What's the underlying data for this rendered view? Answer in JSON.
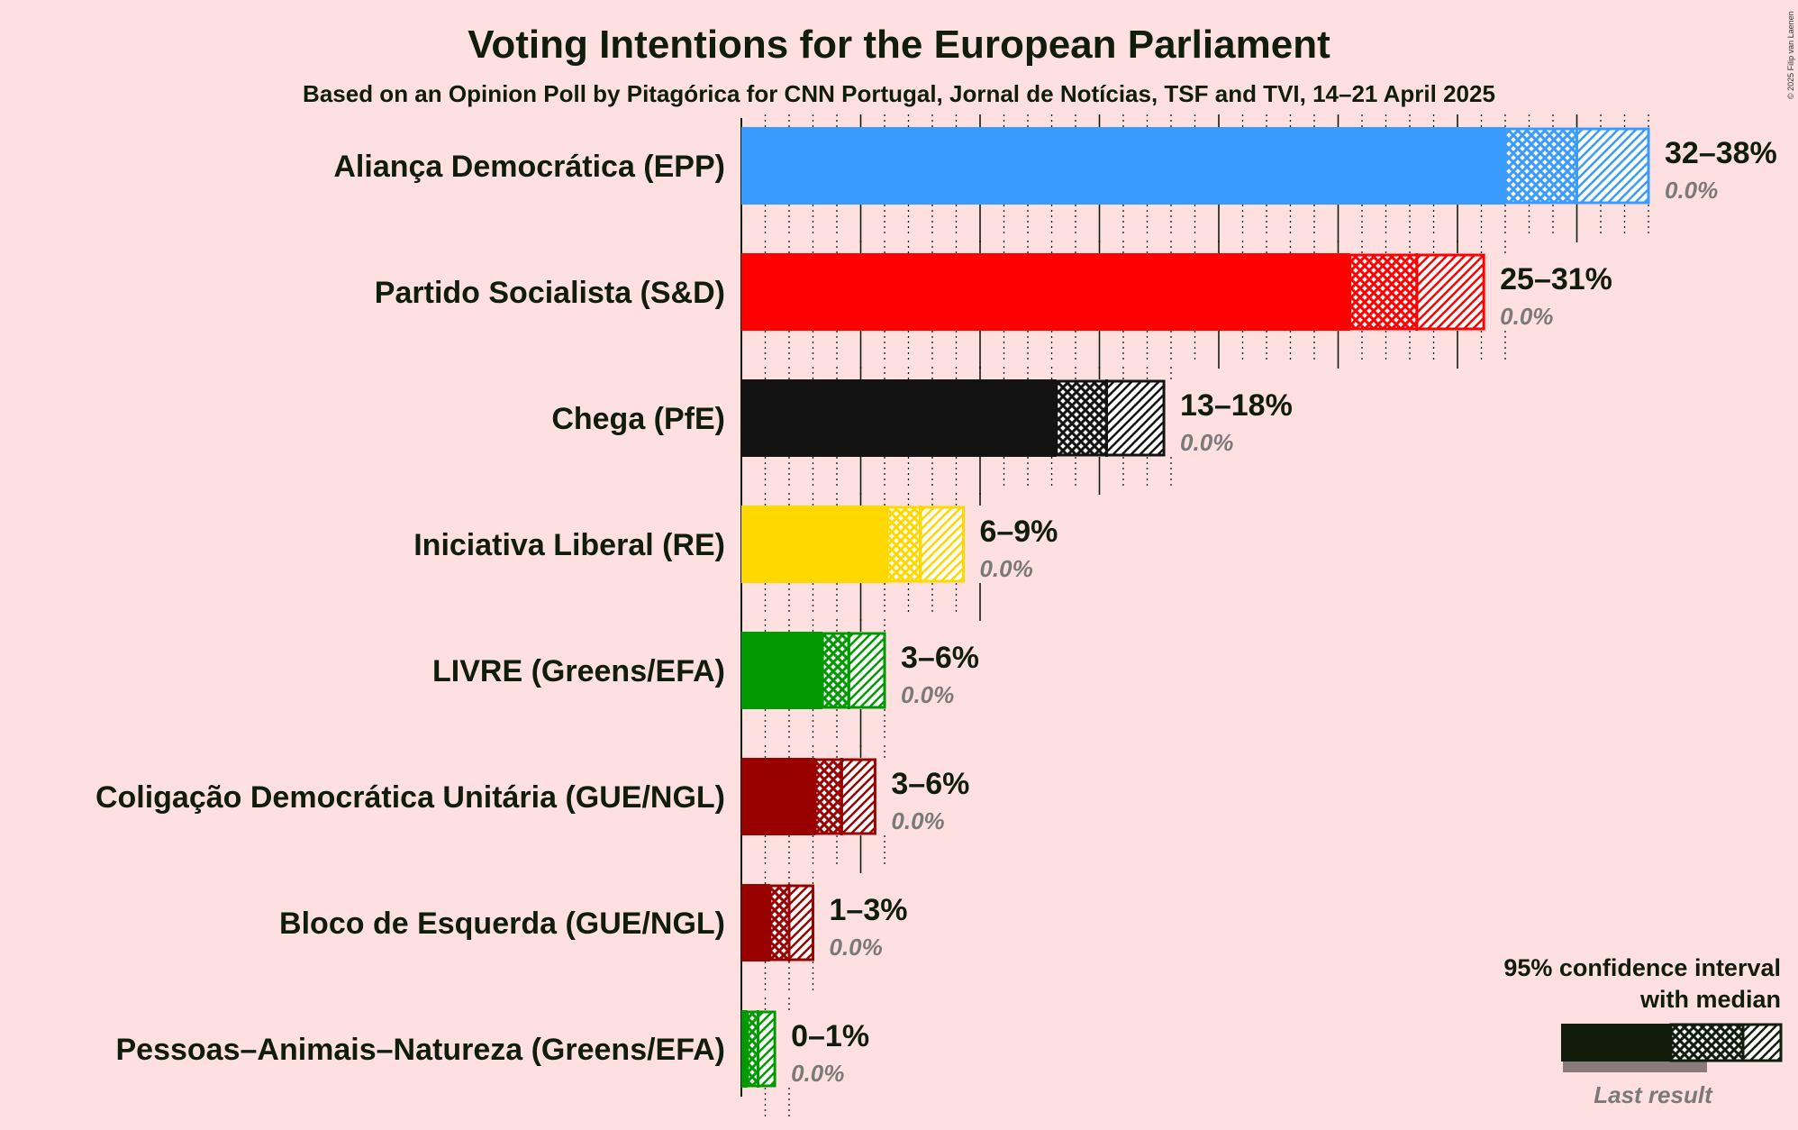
{
  "title": "Voting Intentions for the European Parliament",
  "subtitle": "Based on an Opinion Poll by Pitagórica for CNN Portugal, Jornal de Notícias, TSF and TVI, 14–21 April 2025",
  "copyright": "© 2025 Filip van Laenen",
  "legend": {
    "line1": "95% confidence interval",
    "line2": "with median",
    "last_result": "Last result"
  },
  "chart_data": {
    "type": "bar",
    "orientation": "horizontal",
    "title": "Voting Intentions for the European Parliament",
    "xlabel": "",
    "ylabel": "",
    "unit": "%",
    "xlim": [
      0,
      38
    ],
    "gridlines": "major every 5%, minor every 1%",
    "categories": [
      "Aliança Democrática (EPP)",
      "Partido Socialista (S&D)",
      "Chega (PfE)",
      "Iniciativa Liberal (RE)",
      "LIVRE (Greens/EFA)",
      "Coligação Democrática Unitária (GUE/NGL)",
      "Bloco de Esquerda (GUE/NGL)",
      "Pessoas–Animais–Natureza (Greens/EFA)"
    ],
    "series": [
      {
        "name": "95% confidence interval",
        "parties": [
          {
            "label": "Aliança Democrática (EPP)",
            "low": 32,
            "median": 35,
            "high": 38,
            "range_text": "32–38%",
            "last_result": 0.0,
            "last_text": "0.0%",
            "color": "#3a9bff"
          },
          {
            "label": "Partido Socialista (S&D)",
            "low": 25.5,
            "median": 28.3,
            "high": 31.1,
            "range_text": "25–31%",
            "last_result": 0.0,
            "last_text": "0.0%",
            "color": "#ff0000"
          },
          {
            "label": "Chega (PfE)",
            "low": 13.2,
            "median": 15.3,
            "high": 17.7,
            "range_text": "13–18%",
            "last_result": 0.0,
            "last_text": "0.0%",
            "color": "#131313"
          },
          {
            "label": "Iniciativa Liberal (RE)",
            "low": 6.1,
            "median": 7.5,
            "high": 9.3,
            "range_text": "6–9%",
            "last_result": 0.0,
            "last_text": "0.0%",
            "color": "#ffd800"
          },
          {
            "label": "LIVRE (Greens/EFA)",
            "low": 3.4,
            "median": 4.5,
            "high": 6.0,
            "range_text": "3–6%",
            "last_result": 0.0,
            "last_text": "0.0%",
            "color": "#009a00"
          },
          {
            "label": "Coligação Democrática Unitária (GUE/NGL)",
            "low": 3.1,
            "median": 4.2,
            "high": 5.6,
            "range_text": "3–6%",
            "last_result": 0.0,
            "last_text": "0.0%",
            "color": "#990000"
          },
          {
            "label": "Bloco de Esquerda (GUE/NGL)",
            "low": 1.2,
            "median": 2.0,
            "high": 3.0,
            "range_text": "1–3%",
            "last_result": 0.0,
            "last_text": "0.0%",
            "color": "#990000"
          },
          {
            "label": "Pessoas–Animais–Natureza (Greens/EFA)",
            "low": 0.25,
            "median": 0.7,
            "high": 1.4,
            "range_text": "0–1%",
            "last_result": 0.0,
            "last_text": "0.0%",
            "color": "#009a00"
          }
        ]
      }
    ]
  }
}
